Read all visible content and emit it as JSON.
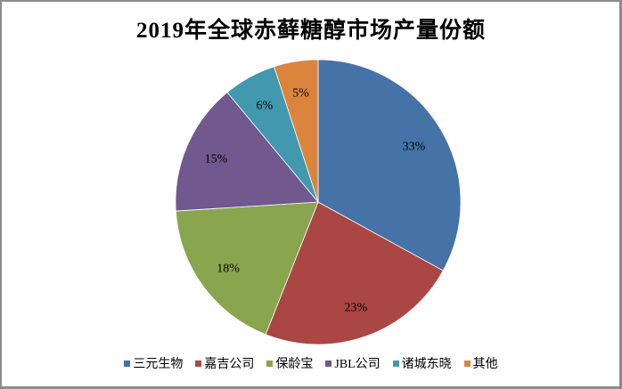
{
  "chart": {
    "title": "2019年全球赤藓糖醇市场产量份额"
  },
  "legend": {
    "items": [
      {
        "label": "三元生物",
        "color": "#4572A7"
      },
      {
        "label": "嘉吉公司",
        "color": "#AA4643"
      },
      {
        "label": "保龄宝",
        "color": "#89A54E"
      },
      {
        "label": "JBL公司",
        "color": "#71588F"
      },
      {
        "label": "诸城东晓",
        "color": "#4198AF"
      },
      {
        "label": "其他",
        "color": "#DB843D"
      }
    ]
  },
  "chart_data": {
    "type": "pie",
    "title": "2019年全球赤藓糖醇市场产量份额",
    "categories": [
      "三元生物",
      "嘉吉公司",
      "保龄宝",
      "JBL公司",
      "诸城东晓",
      "其他"
    ],
    "values": [
      33,
      23,
      18,
      15,
      6,
      5
    ],
    "labels": [
      "33%",
      "23%",
      "18%",
      "15%",
      "6%",
      "5%"
    ],
    "colors": [
      "#4572A7",
      "#AA4643",
      "#89A54E",
      "#71588F",
      "#4198AF",
      "#DB843D"
    ],
    "start_angle": "12 o'clock, clockwise",
    "legend_position": "bottom"
  }
}
